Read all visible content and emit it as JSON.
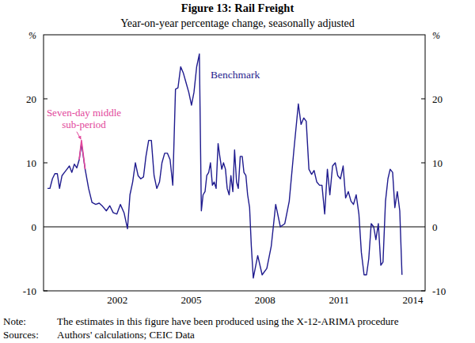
{
  "chart_data": {
    "type": "line",
    "title": "Figure 13: Rail Freight",
    "subtitle": "Year-on-year percentage change, seasonally adjusted",
    "ylabel": "%",
    "x": [
      1999.66,
      1999.76,
      1999.86,
      1999.96,
      2000.06,
      2000.15,
      2000.25,
      2000.35,
      2000.45,
      2000.55,
      2000.65,
      2000.75,
      2000.85,
      2000.95,
      2001.04,
      2001.19,
      2001.33,
      2001.47,
      2001.62,
      2001.76,
      2001.9,
      2002.05,
      2002.19,
      2002.33,
      2002.48,
      2002.62,
      2002.77,
      2002.91,
      2003.01,
      2003.12,
      2003.23,
      2003.34,
      2003.45,
      2003.56,
      2003.66,
      2003.77,
      2003.88,
      2003.99,
      2004.1,
      2004.21,
      2004.31,
      2004.42,
      2004.53,
      2004.64,
      2004.75,
      2004.86,
      2004.96,
      2005.07,
      2005.18,
      2005.29,
      2005.4,
      2005.51,
      2005.61,
      2005.72,
      2005.83,
      2005.91,
      2005.98,
      2006.06,
      2006.13,
      2006.21,
      2006.28,
      2006.36,
      2006.43,
      2006.51,
      2006.59,
      2006.66,
      2006.74,
      2006.81,
      2006.89,
      2006.96,
      2007.04,
      2007.11,
      2007.19,
      2007.26,
      2007.34,
      2007.41,
      2007.49,
      2007.57,
      2007.64,
      2007.72,
      2007.79,
      2007.87,
      2007.94,
      2008.02,
      2008.2,
      2008.38,
      2008.57,
      2008.75,
      2008.93,
      2009.12,
      2009.3,
      2009.48,
      2009.67,
      2009.85,
      2009.96,
      2010.07,
      2010.17,
      2010.28,
      2010.39,
      2010.49,
      2010.6,
      2010.71,
      2010.81,
      2010.92,
      2011.03,
      2011.13,
      2011.24,
      2011.35,
      2011.45,
      2011.56,
      2011.67,
      2011.77,
      2011.88,
      2011.99,
      2012.09,
      2012.2,
      2012.31,
      2012.41,
      2012.52,
      2012.62,
      2012.71,
      2012.81,
      2012.91,
      2013,
      2013.1,
      2013.2,
      2013.29,
      2013.39,
      2013.49,
      2013.58,
      2013.68,
      2013.77,
      2013.87,
      2013.97,
      2014.06
    ],
    "series": [
      {
        "name": "Benchmark",
        "color": "#1f1b8e",
        "values": [
          6,
          6,
          7.5,
          8.3,
          8.3,
          6,
          8,
          8.5,
          9,
          9.5,
          8.5,
          9.8,
          9.2,
          10.5,
          13,
          9,
          6,
          3.8,
          3.5,
          3.7,
          3.2,
          2.5,
          3.3,
          2.2,
          2,
          3.5,
          2.2,
          -0.3,
          5,
          7,
          10,
          8,
          7.5,
          7.8,
          11,
          13.5,
          13.5,
          8,
          6,
          7,
          10,
          11.5,
          11.5,
          10.5,
          6.5,
          21.5,
          21.7,
          25,
          24,
          22.5,
          21,
          19,
          21,
          25,
          27,
          2.5,
          5,
          5.5,
          8,
          8.5,
          10,
          6.5,
          7,
          6,
          13,
          11,
          9,
          10,
          9,
          6,
          5,
          8,
          5.5,
          12,
          7,
          6,
          11,
          11,
          8.5,
          8,
          5,
          3,
          -3,
          -8,
          -4.5,
          -7.5,
          -6.5,
          -3,
          3.5,
          0,
          0.5,
          4,
          12,
          19.2,
          16,
          17,
          16.5,
          9,
          8.2,
          8.8,
          7,
          6.5,
          6.5,
          2,
          9,
          5,
          9.5,
          10,
          8,
          7.5,
          9.5,
          4.5,
          5.5,
          4,
          3.5,
          5,
          2,
          -4,
          -7.5,
          -7.5,
          -5,
          0.5,
          0,
          -2,
          0.5,
          -6,
          -5.5,
          4,
          7.5,
          9,
          8.5,
          3,
          5.5,
          2.5,
          -7.5
        ]
      },
      {
        "name": "Seven-day middle sub-period",
        "color": "#e2479b",
        "values": [
          null,
          null,
          null,
          null,
          null,
          null,
          null,
          null,
          null,
          null,
          null,
          null,
          null,
          10.5,
          13.5,
          9,
          null,
          null,
          null,
          null,
          null,
          null,
          null,
          null,
          null,
          null,
          null,
          null,
          null,
          null,
          null,
          null,
          null,
          null,
          null,
          null,
          null,
          null,
          null,
          null,
          null,
          null,
          null,
          null,
          null,
          null,
          null,
          null,
          null,
          null,
          null,
          null,
          null,
          null,
          null,
          null,
          null,
          null,
          null,
          null,
          null,
          null,
          null,
          null,
          null,
          null,
          null,
          null,
          null,
          null,
          null,
          null,
          null,
          null,
          null,
          null,
          null,
          null,
          null,
          null,
          null,
          null,
          null,
          null,
          null,
          null,
          null,
          null,
          null,
          null,
          null,
          null,
          null,
          null,
          null,
          null,
          null,
          null,
          null,
          null,
          null,
          null,
          null,
          null,
          null,
          null,
          null,
          null,
          null,
          null,
          null,
          null,
          null,
          null,
          null,
          null,
          null,
          null,
          null,
          null,
          null,
          null,
          null,
          null,
          null,
          null,
          null,
          null,
          null,
          null,
          null,
          null,
          null,
          null,
          null
        ]
      }
    ],
    "xlim": [
      1999.5,
      2015
    ],
    "xticks": [
      {
        "value": 2002.5,
        "label": "2002"
      },
      {
        "value": 2005.5,
        "label": "2005"
      },
      {
        "value": 2008.5,
        "label": "2008"
      },
      {
        "value": 2011.5,
        "label": "2011"
      },
      {
        "value": 2014.5,
        "label": "2014"
      }
    ],
    "ylim": [
      -10,
      30
    ],
    "yticks": [
      -10,
      0,
      10,
      20
    ],
    "grid": false,
    "footnotes": [
      {
        "label": "Note:",
        "text": "The estimates in this figure have been produced using the X-12-ARIMA procedure"
      },
      {
        "label": "Sources:",
        "text": "Authors' calculations; CEIC Data"
      }
    ]
  }
}
